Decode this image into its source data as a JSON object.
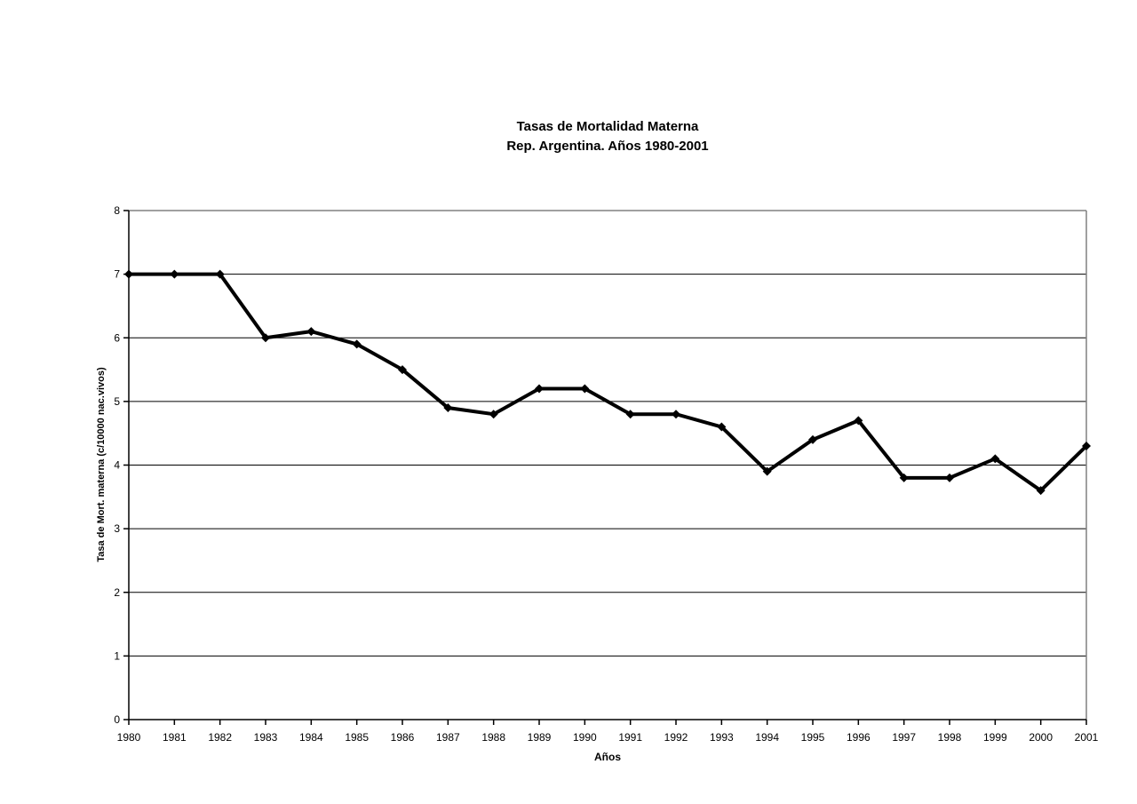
{
  "page": {
    "background": "#ffffff"
  },
  "chart_data": {
    "type": "line",
    "title": "Tasas de Mortalidad Materna",
    "subtitle": "Rep. Argentina. Años 1980-2001",
    "xlabel": "Años",
    "ylabel": "Tasa de Mort. materna (c/10000 nac.vivos)",
    "categories": [
      "1980",
      "1981",
      "1982",
      "1983",
      "1984",
      "1985",
      "1986",
      "1987",
      "1988",
      "1989",
      "1990",
      "1991",
      "1992",
      "1993",
      "1994",
      "1995",
      "1996",
      "1997",
      "1998",
      "1999",
      "2000",
      "2001"
    ],
    "values": [
      7.0,
      7.0,
      7.0,
      6.0,
      6.1,
      5.9,
      5.5,
      4.9,
      4.8,
      5.2,
      5.2,
      4.8,
      4.8,
      4.6,
      3.9,
      4.4,
      4.7,
      3.8,
      3.8,
      4.1,
      3.6,
      4.3
    ],
    "ylim": [
      0,
      8
    ],
    "yticks": [
      0,
      1,
      2,
      3,
      4,
      5,
      6,
      7,
      8
    ],
    "grid": "horizontal",
    "legend": "none",
    "marker": "diamond",
    "colors": {
      "line": "#000000",
      "marker": "#000000",
      "gridline": "#000000",
      "axis": "#000000",
      "plot_border": "#808080",
      "text": "#000000",
      "background": "#ffffff"
    }
  }
}
